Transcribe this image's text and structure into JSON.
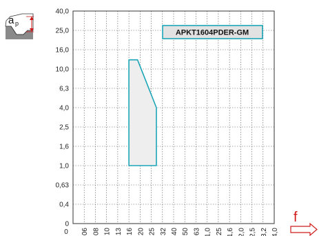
{
  "icons": {
    "depth_of_cut": "depth-of-cut-insert-icon",
    "feed_arrow": "feed-arrow-right-icon"
  },
  "icon_text": {
    "ap_main": "a",
    "ap_sub": "p"
  },
  "colors": {
    "region_stroke": "#1aa6b7",
    "region_fill": "#eeeeee",
    "label_box_fill": "#e2e2e2",
    "accent_red": "#d01a1a",
    "grid": "#555555"
  },
  "chart_data": {
    "type": "area",
    "title": "",
    "xlabel": "f",
    "ylabel": "",
    "x_ticks": [
      "0",
      ",06",
      ",08",
      ",10",
      ",13",
      ",16",
      ",20",
      ",25",
      ",32",
      ",40",
      ",50",
      ",63",
      "1,0",
      "1,25",
      "1,6",
      "2,0",
      "2,5",
      "3,2",
      "4,0"
    ],
    "x_scale": "categorical-log",
    "y_ticks": [
      "0",
      "0,4",
      "0,63",
      "1,0",
      "1,6",
      "2,5",
      "4,0",
      "6,3",
      "10,0",
      "16,0",
      "25,0",
      "40,0"
    ],
    "y_scale": "categorical-log",
    "grid": true,
    "legend_position": "top-right",
    "series": [
      {
        "name": "APKT1604PDER-GM",
        "points": [
          [
            0.16,
            1.0
          ],
          [
            0.16,
            12.5
          ],
          [
            0.19,
            12.5
          ],
          [
            0.28,
            4.0
          ],
          [
            0.28,
            1.0
          ]
        ]
      }
    ]
  }
}
